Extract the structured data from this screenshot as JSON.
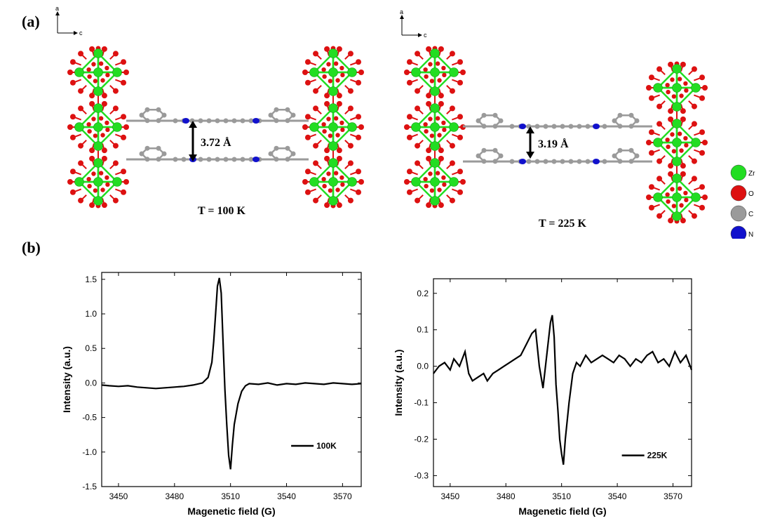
{
  "panel_a": {
    "label": "(a)",
    "axis_a": "a",
    "axis_c": "c",
    "left_distance": "3.72 Å",
    "left_temp": "T = 100 K",
    "right_distance": "3.19 Å",
    "right_temp": "T = 225 K",
    "legend": [
      {
        "label": "Zr",
        "color": "#22dd22"
      },
      {
        "label": "O",
        "color": "#dd1111"
      },
      {
        "label": "C",
        "color": "#9a9a9a"
      },
      {
        "label": "N",
        "color": "#1111cc"
      }
    ]
  },
  "panel_b": {
    "label": "(b)"
  },
  "chart_data": [
    {
      "type": "line",
      "xlabel": "Magenetic field (G)",
      "ylabel": "Intensity (a.u.)",
      "xlim": [
        3441,
        3580
      ],
      "ylim": [
        -1.5,
        1.6
      ],
      "xticks": [
        3450,
        3480,
        3510,
        3540,
        3570
      ],
      "yticks": [
        -1.5,
        -1.0,
        -0.5,
        0.0,
        0.5,
        1.0,
        1.5
      ],
      "ytick_labels": [
        "-1.5",
        "-1.0",
        "-0.5",
        "0.0",
        "0.5",
        "1.0",
        "1.5"
      ],
      "legend_position": "bottom-right",
      "series": [
        {
          "name": "100K",
          "color": "#000000",
          "x": [
            3441,
            3445,
            3450,
            3455,
            3460,
            3465,
            3470,
            3475,
            3480,
            3485,
            3490,
            3495,
            3498,
            3500,
            3501,
            3502,
            3503,
            3504,
            3505,
            3506,
            3507,
            3508,
            3509,
            3510,
            3511,
            3512,
            3514,
            3516,
            3518,
            3520,
            3525,
            3530,
            3535,
            3540,
            3545,
            3550,
            3555,
            3560,
            3565,
            3570,
            3575,
            3580
          ],
          "y": [
            -0.03,
            -0.04,
            -0.05,
            -0.04,
            -0.06,
            -0.07,
            -0.08,
            -0.07,
            -0.06,
            -0.05,
            -0.03,
            0.0,
            0.08,
            0.3,
            0.6,
            1.0,
            1.4,
            1.52,
            1.3,
            0.6,
            -0.1,
            -0.6,
            -1.05,
            -1.25,
            -0.9,
            -0.6,
            -0.3,
            -0.12,
            -0.04,
            -0.01,
            -0.02,
            0.0,
            -0.03,
            -0.01,
            -0.02,
            0.0,
            -0.01,
            -0.02,
            0.0,
            -0.01,
            -0.02,
            -0.01
          ]
        }
      ]
    },
    {
      "type": "line",
      "xlabel": "Magenetic field (G)",
      "ylabel": "Intensity (a.u.)",
      "xlim": [
        3441,
        3580
      ],
      "ylim": [
        -0.33,
        0.24
      ],
      "xticks": [
        3450,
        3480,
        3510,
        3540,
        3570
      ],
      "yticks": [
        -0.3,
        -0.2,
        -0.1,
        0.0,
        0.1,
        0.2
      ],
      "ytick_labels": [
        "-0.3",
        "-0.2",
        "-0.1",
        "0.0",
        "0.1",
        "0.2"
      ],
      "legend_position": "bottom-right",
      "series": [
        {
          "name": "225K",
          "color": "#000000",
          "x": [
            3441,
            3444,
            3447,
            3450,
            3452,
            3455,
            3458,
            3460,
            3462,
            3465,
            3468,
            3470,
            3473,
            3476,
            3479,
            3482,
            3485,
            3488,
            3491,
            3494,
            3496,
            3498,
            3500,
            3502,
            3504,
            3505,
            3506,
            3507,
            3508,
            3509,
            3510,
            3511,
            3512,
            3514,
            3516,
            3518,
            3520,
            3523,
            3526,
            3529,
            3532,
            3535,
            3538,
            3541,
            3544,
            3547,
            3550,
            3553,
            3556,
            3559,
            3562,
            3565,
            3568,
            3571,
            3574,
            3577,
            3580
          ],
          "y": [
            -0.02,
            0.0,
            0.01,
            -0.01,
            0.02,
            0.0,
            0.04,
            -0.02,
            -0.04,
            -0.03,
            -0.02,
            -0.04,
            -0.02,
            -0.01,
            0.0,
            0.01,
            0.02,
            0.03,
            0.06,
            0.09,
            0.1,
            0.0,
            -0.06,
            0.03,
            0.12,
            0.14,
            0.08,
            -0.05,
            -0.12,
            -0.2,
            -0.24,
            -0.27,
            -0.2,
            -0.1,
            -0.02,
            0.01,
            0.0,
            0.03,
            0.01,
            0.02,
            0.03,
            0.02,
            0.01,
            0.03,
            0.02,
            0.0,
            0.02,
            0.01,
            0.03,
            0.04,
            0.01,
            0.02,
            0.0,
            0.04,
            0.01,
            0.03,
            -0.01
          ]
        }
      ]
    }
  ]
}
